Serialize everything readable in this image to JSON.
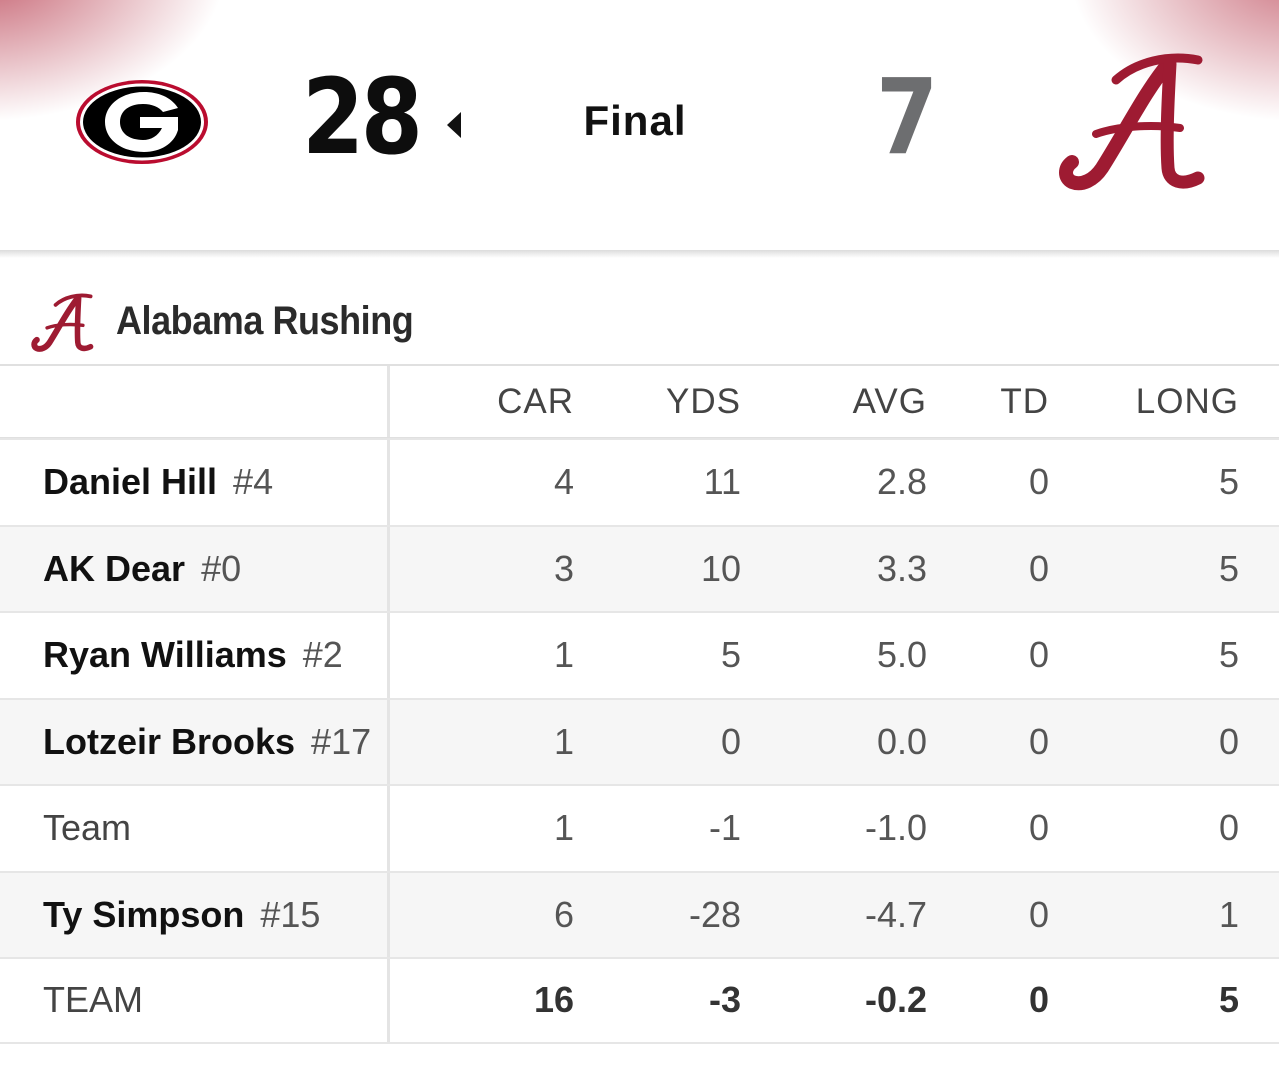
{
  "scoreboard": {
    "away": {
      "logo_letter": "G",
      "score": "28",
      "winner": true
    },
    "status": "Final",
    "home": {
      "logo_letter": "A",
      "score": "7"
    }
  },
  "section": {
    "title": "Alabama Rushing",
    "logo_letter": "A"
  },
  "table": {
    "columns": [
      "CAR",
      "YDS",
      "AVG",
      "TD",
      "LONG"
    ],
    "rows": [
      {
        "name": "Daniel Hill",
        "number": "#4",
        "car": "4",
        "yds": "11",
        "avg": "2.8",
        "td": "0",
        "long": "5"
      },
      {
        "name": "AK Dear",
        "number": "#0",
        "car": "3",
        "yds": "10",
        "avg": "3.3",
        "td": "0",
        "long": "5"
      },
      {
        "name": "Ryan Williams",
        "number": "#2",
        "car": "1",
        "yds": "5",
        "avg": "5.0",
        "td": "0",
        "long": "5"
      },
      {
        "name": "Lotzeir Brooks",
        "number": "#17",
        "car": "1",
        "yds": "0",
        "avg": "0.0",
        "td": "0",
        "long": "0"
      },
      {
        "name": "Team",
        "number": "",
        "car": "1",
        "yds": "-1",
        "avg": "-1.0",
        "td": "0",
        "long": "0"
      },
      {
        "name": "Ty Simpson",
        "number": "#15",
        "car": "6",
        "yds": "-28",
        "avg": "-4.7",
        "td": "0",
        "long": "1"
      }
    ],
    "total": {
      "label": "TEAM",
      "car": "16",
      "yds": "-3",
      "avg": "-0.2",
      "td": "0",
      "long": "5"
    }
  },
  "colors": {
    "georgia_red": "#ba0c2f",
    "alabama_crimson": "#9e1b32",
    "away_score": "#0d0d0d",
    "home_score": "#6d6e70"
  },
  "icons": {
    "away_logo": "georgia-g-logo-icon",
    "home_logo": "alabama-script-a-logo-icon",
    "winner_indicator": "caret-left-icon"
  }
}
